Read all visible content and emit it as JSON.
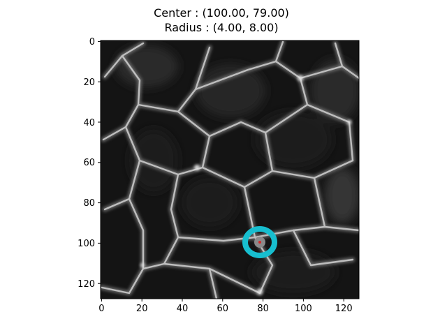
{
  "title": {
    "line1": "Center : (100.00, 79.00)",
    "line2": "Radius : (4.00, 8.00)"
  },
  "chart_data": {
    "type": "heatmap",
    "image_description_kind": "grayscale microscopy image of cell membranes",
    "colormap": "gray",
    "x_ticks": [
      "0",
      "20",
      "40",
      "60",
      "80",
      "100",
      "120"
    ],
    "y_ticks": [
      "0",
      "20",
      "40",
      "60",
      "80",
      "100",
      "120"
    ],
    "xlim": [
      -0.5,
      127.5
    ],
    "ylim": [
      127.5,
      -0.5
    ],
    "marker": {
      "center_row": 100,
      "center_col": 79,
      "radius_row": 4,
      "radius_col": 8,
      "ring_color": "#17becf",
      "center_dot_color": "#d62728"
    }
  }
}
